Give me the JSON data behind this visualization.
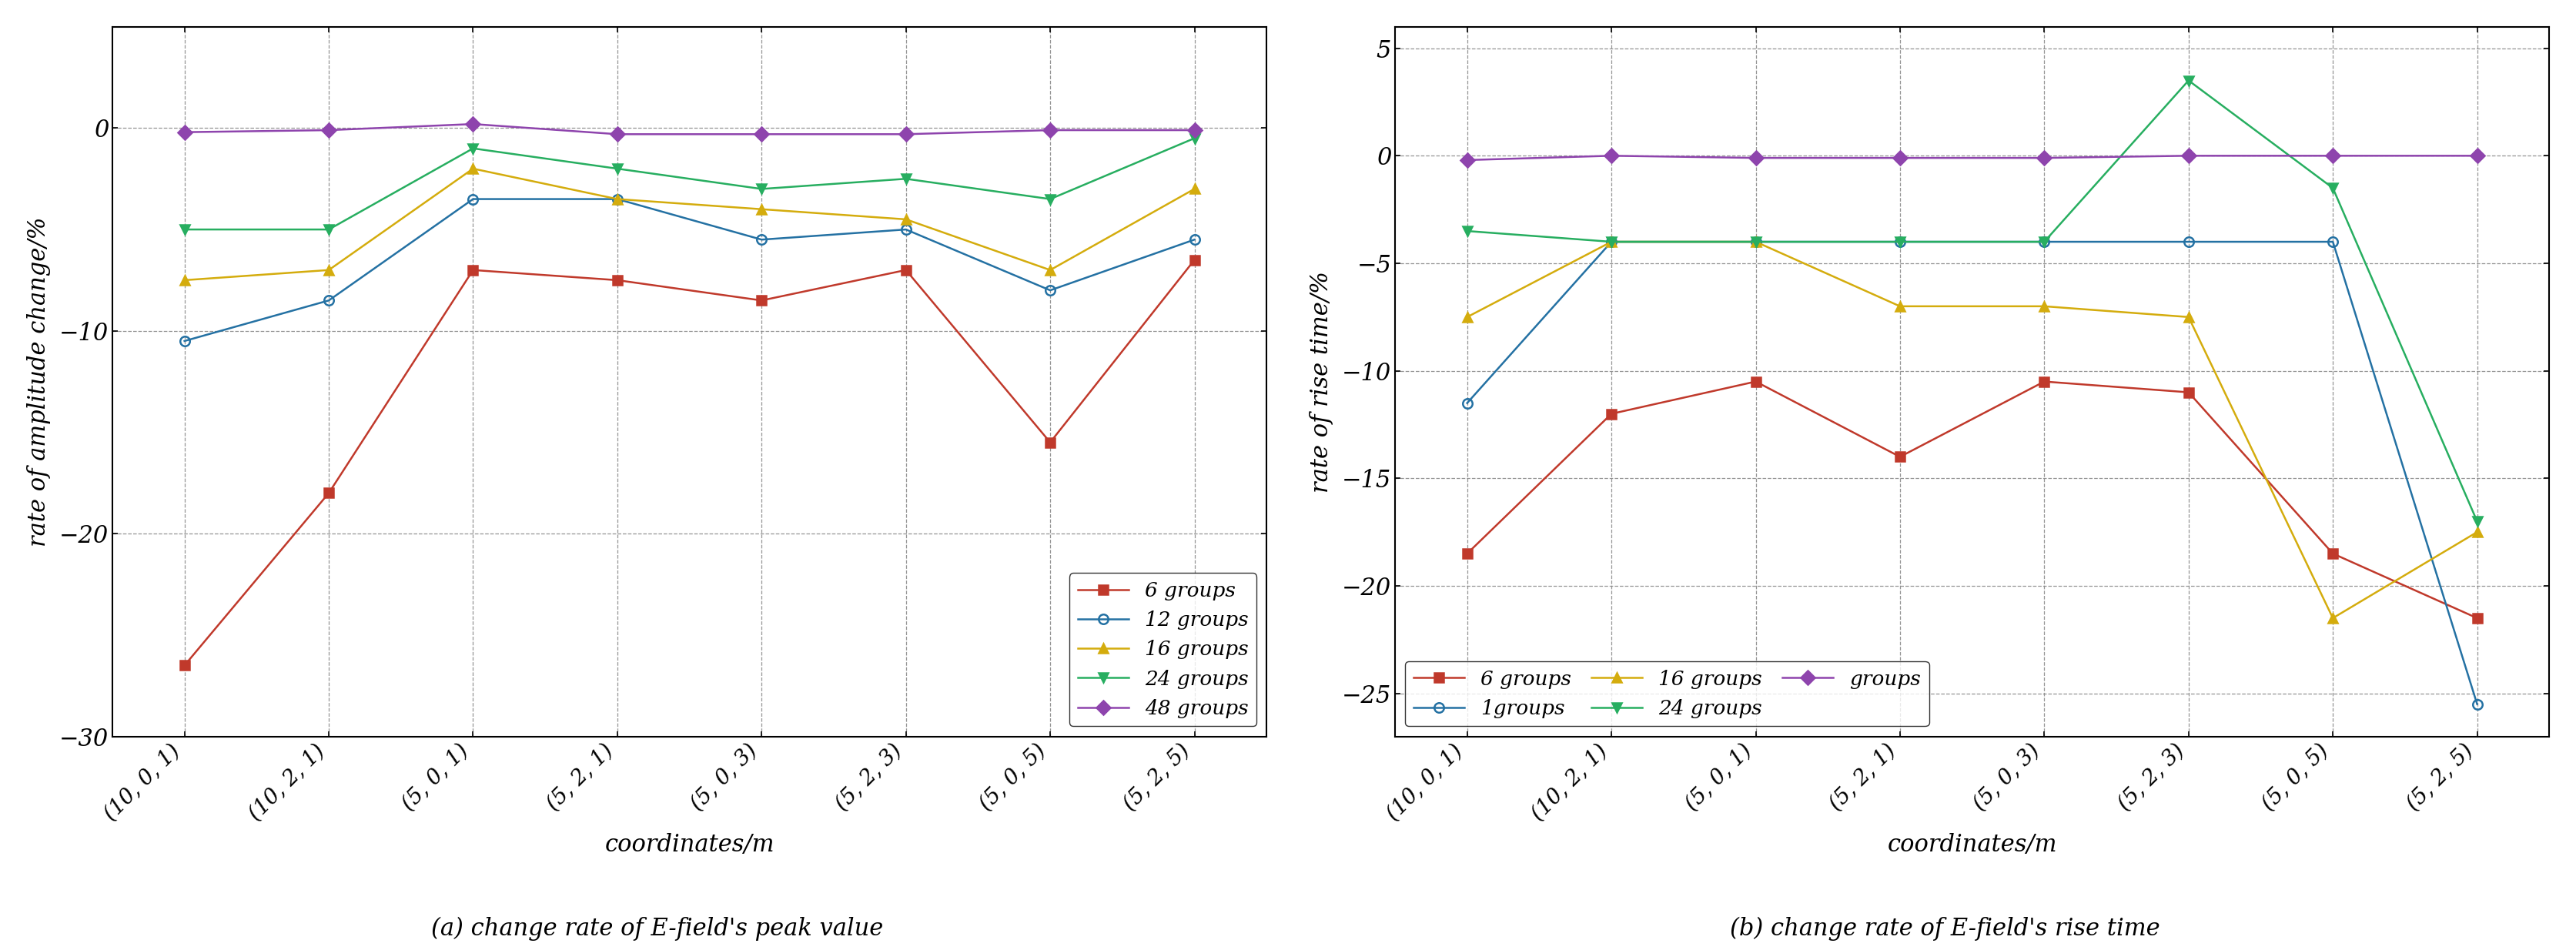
{
  "x_labels": [
    "(10, 0, 1)",
    "(10, 2, 1)",
    "(5, 0, 1)",
    "(5, 2, 1)",
    "(5, 0, 3)",
    "(5, 2, 3)",
    "(5, 0, 5)",
    "(5, 2, 5)"
  ],
  "plot_a": {
    "subtitle": "(a) change rate of E-field's peak value",
    "ylabel": "rate of amplitude change/%",
    "xlabel": "coordinates/m",
    "ylim": [
      -30,
      5
    ],
    "yticks": [
      0,
      -10,
      -20,
      -30
    ],
    "legend_loc": "lower right",
    "legend_ncol": 1,
    "series": [
      {
        "label": "6 groups",
        "color": "#c0392b",
        "marker": "s",
        "markerface": true,
        "values": [
          -26.5,
          -18.0,
          -7.0,
          -7.5,
          -8.5,
          -7.0,
          -15.5,
          -6.5
        ]
      },
      {
        "label": "12 groups",
        "color": "#2471a3",
        "marker": "o",
        "markerface": false,
        "values": [
          -10.5,
          -8.5,
          -3.5,
          -3.5,
          -5.5,
          -5.0,
          -8.0,
          -5.5
        ]
      },
      {
        "label": "16 groups",
        "color": "#d4ac0d",
        "marker": "^",
        "markerface": true,
        "values": [
          -7.5,
          -7.0,
          -2.0,
          -3.5,
          -4.0,
          -4.5,
          -7.0,
          -3.0
        ]
      },
      {
        "label": "24 groups",
        "color": "#27ae60",
        "marker": "v",
        "markerface": true,
        "values": [
          -5.0,
          -5.0,
          -1.0,
          -2.0,
          -3.0,
          -2.5,
          -3.5,
          -0.5
        ]
      },
      {
        "label": "48 groups",
        "color": "#8e44ad",
        "marker": "D",
        "markerface": true,
        "values": [
          -0.2,
          -0.1,
          0.2,
          -0.3,
          -0.3,
          -0.3,
          -0.1,
          -0.1
        ]
      }
    ]
  },
  "plot_b": {
    "subtitle": "(b) change rate of E-field's rise time",
    "ylabel": "rate of rise time/%",
    "xlabel": "coordinates/m",
    "ylim": [
      -27,
      6
    ],
    "yticks": [
      5,
      0,
      -5,
      -10,
      -15,
      -20,
      -25
    ],
    "legend_loc": "lower left",
    "legend_ncol": 3,
    "series": [
      {
        "label": "6 groups",
        "color": "#c0392b",
        "marker": "s",
        "markerface": true,
        "values": [
          -18.5,
          -12.0,
          -10.5,
          -14.0,
          -10.5,
          -11.0,
          -18.5,
          -21.5
        ]
      },
      {
        "label": "1groups",
        "color": "#2471a3",
        "marker": "o",
        "markerface": false,
        "values": [
          -11.5,
          -4.0,
          -4.0,
          -4.0,
          -4.0,
          -4.0,
          -4.0,
          -25.5
        ]
      },
      {
        "label": "16 groups",
        "color": "#d4ac0d",
        "marker": "^",
        "markerface": true,
        "values": [
          -7.5,
          -4.0,
          -4.0,
          -7.0,
          -7.0,
          -7.5,
          -21.5,
          -17.5
        ]
      },
      {
        "label": "24 groups",
        "color": "#27ae60",
        "marker": "v",
        "markerface": true,
        "values": [
          -3.5,
          -4.0,
          -4.0,
          -4.0,
          -4.0,
          3.5,
          -1.5,
          -17.0
        ]
      },
      {
        "label": "groups",
        "color": "#8e44ad",
        "marker": "D",
        "markerface": true,
        "values": [
          -0.2,
          0.0,
          -0.1,
          -0.1,
          -0.1,
          0.0,
          0.0,
          0.0
        ]
      }
    ]
  }
}
